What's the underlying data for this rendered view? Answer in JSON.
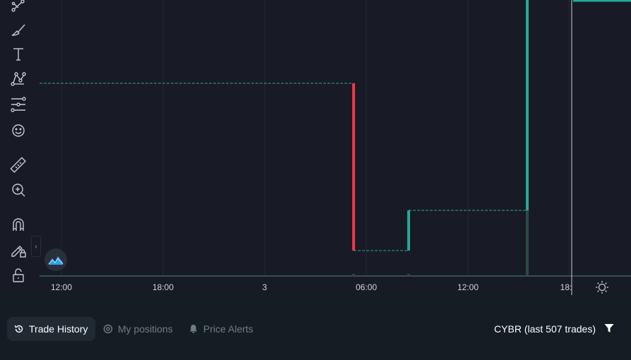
{
  "toolbar": {
    "tools": [
      {
        "name": "trend-line-tool-icon"
      },
      {
        "name": "brush-tool-icon"
      },
      {
        "name": "text-tool-icon"
      },
      {
        "name": "pattern-tool-icon"
      },
      {
        "name": "fib-retracement-tool-icon"
      },
      {
        "name": "emoji-tool-icon"
      },
      {
        "name": "ruler-tool-icon"
      },
      {
        "name": "zoom-in-tool-icon"
      },
      {
        "name": "magnet-tool-icon"
      },
      {
        "name": "lock-drawings-tool-icon"
      },
      {
        "name": "unlock-tool-icon"
      }
    ],
    "collapse_glyph": "‹"
  },
  "chart_data": {
    "type": "line",
    "step": true,
    "grid": true,
    "x_tick_labels": [
      "12:00",
      "18:00",
      "3",
      "06:00",
      "12:00",
      "18:"
    ],
    "segments": [
      {
        "direction": "down",
        "color": "#f23645"
      },
      {
        "direction": "up",
        "color": "#22ab94"
      },
      {
        "direction": "up",
        "color": "#22ab94"
      }
    ],
    "colors": {
      "up": "#22ab94",
      "down": "#f23645",
      "grid": "#252937",
      "baseline": "#3f8f88"
    }
  },
  "chart": {
    "settings_icon": "sun-settings-icon",
    "logo_icon": "chart-logo-icon"
  },
  "bottom": {
    "tabs": [
      {
        "label": "Trade History",
        "icon": "history-icon",
        "active": true
      },
      {
        "label": "My positions",
        "icon": "target-icon",
        "active": false
      },
      {
        "label": "Price Alerts",
        "icon": "bell-icon",
        "active": false
      }
    ],
    "symbol_info": "CYBR (last 507 trades)",
    "filter_icon": "filter-icon"
  }
}
